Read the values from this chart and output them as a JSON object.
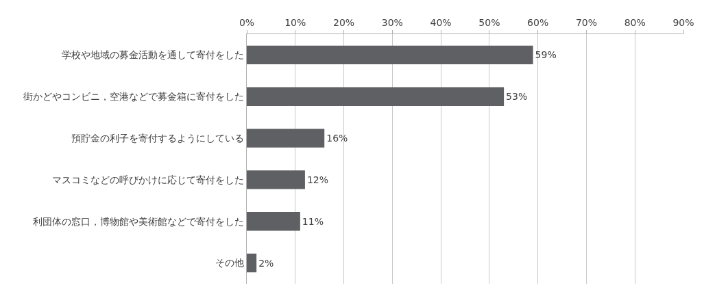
{
  "chart_data": {
    "type": "bar",
    "orientation": "horizontal",
    "categories": [
      "学校や地域の募金活動を通して寄付をした",
      "街かどやコンビニ，空港などで募金箱に寄付をした",
      "預貯金の利子を寄付するようにしている",
      "マスコミなどの呼びかけに応じて寄付をした",
      "利団体の窓口，博物館や美術館などで寄付をした",
      "その他"
    ],
    "values": [
      59,
      53,
      16,
      12,
      11,
      2
    ],
    "value_labels": [
      "59%",
      "53%",
      "16%",
      "12%",
      "11%",
      "2%"
    ],
    "color": "#5f6063",
    "xlim": [
      0,
      90
    ],
    "xticks": [
      {
        "value": 0,
        "label": "0%"
      },
      {
        "value": 10,
        "label": "10%"
      },
      {
        "value": 20,
        "label": "20%"
      },
      {
        "value": 30,
        "label": "30%"
      },
      {
        "value": 40,
        "label": "40%"
      },
      {
        "value": 50,
        "label": "50%"
      },
      {
        "value": 60,
        "label": "60%"
      },
      {
        "value": 70,
        "label": "70%"
      },
      {
        "value": 80,
        "label": "80%"
      },
      {
        "value": 90,
        "label": "90%"
      }
    ],
    "grid": "x",
    "legend": false
  }
}
